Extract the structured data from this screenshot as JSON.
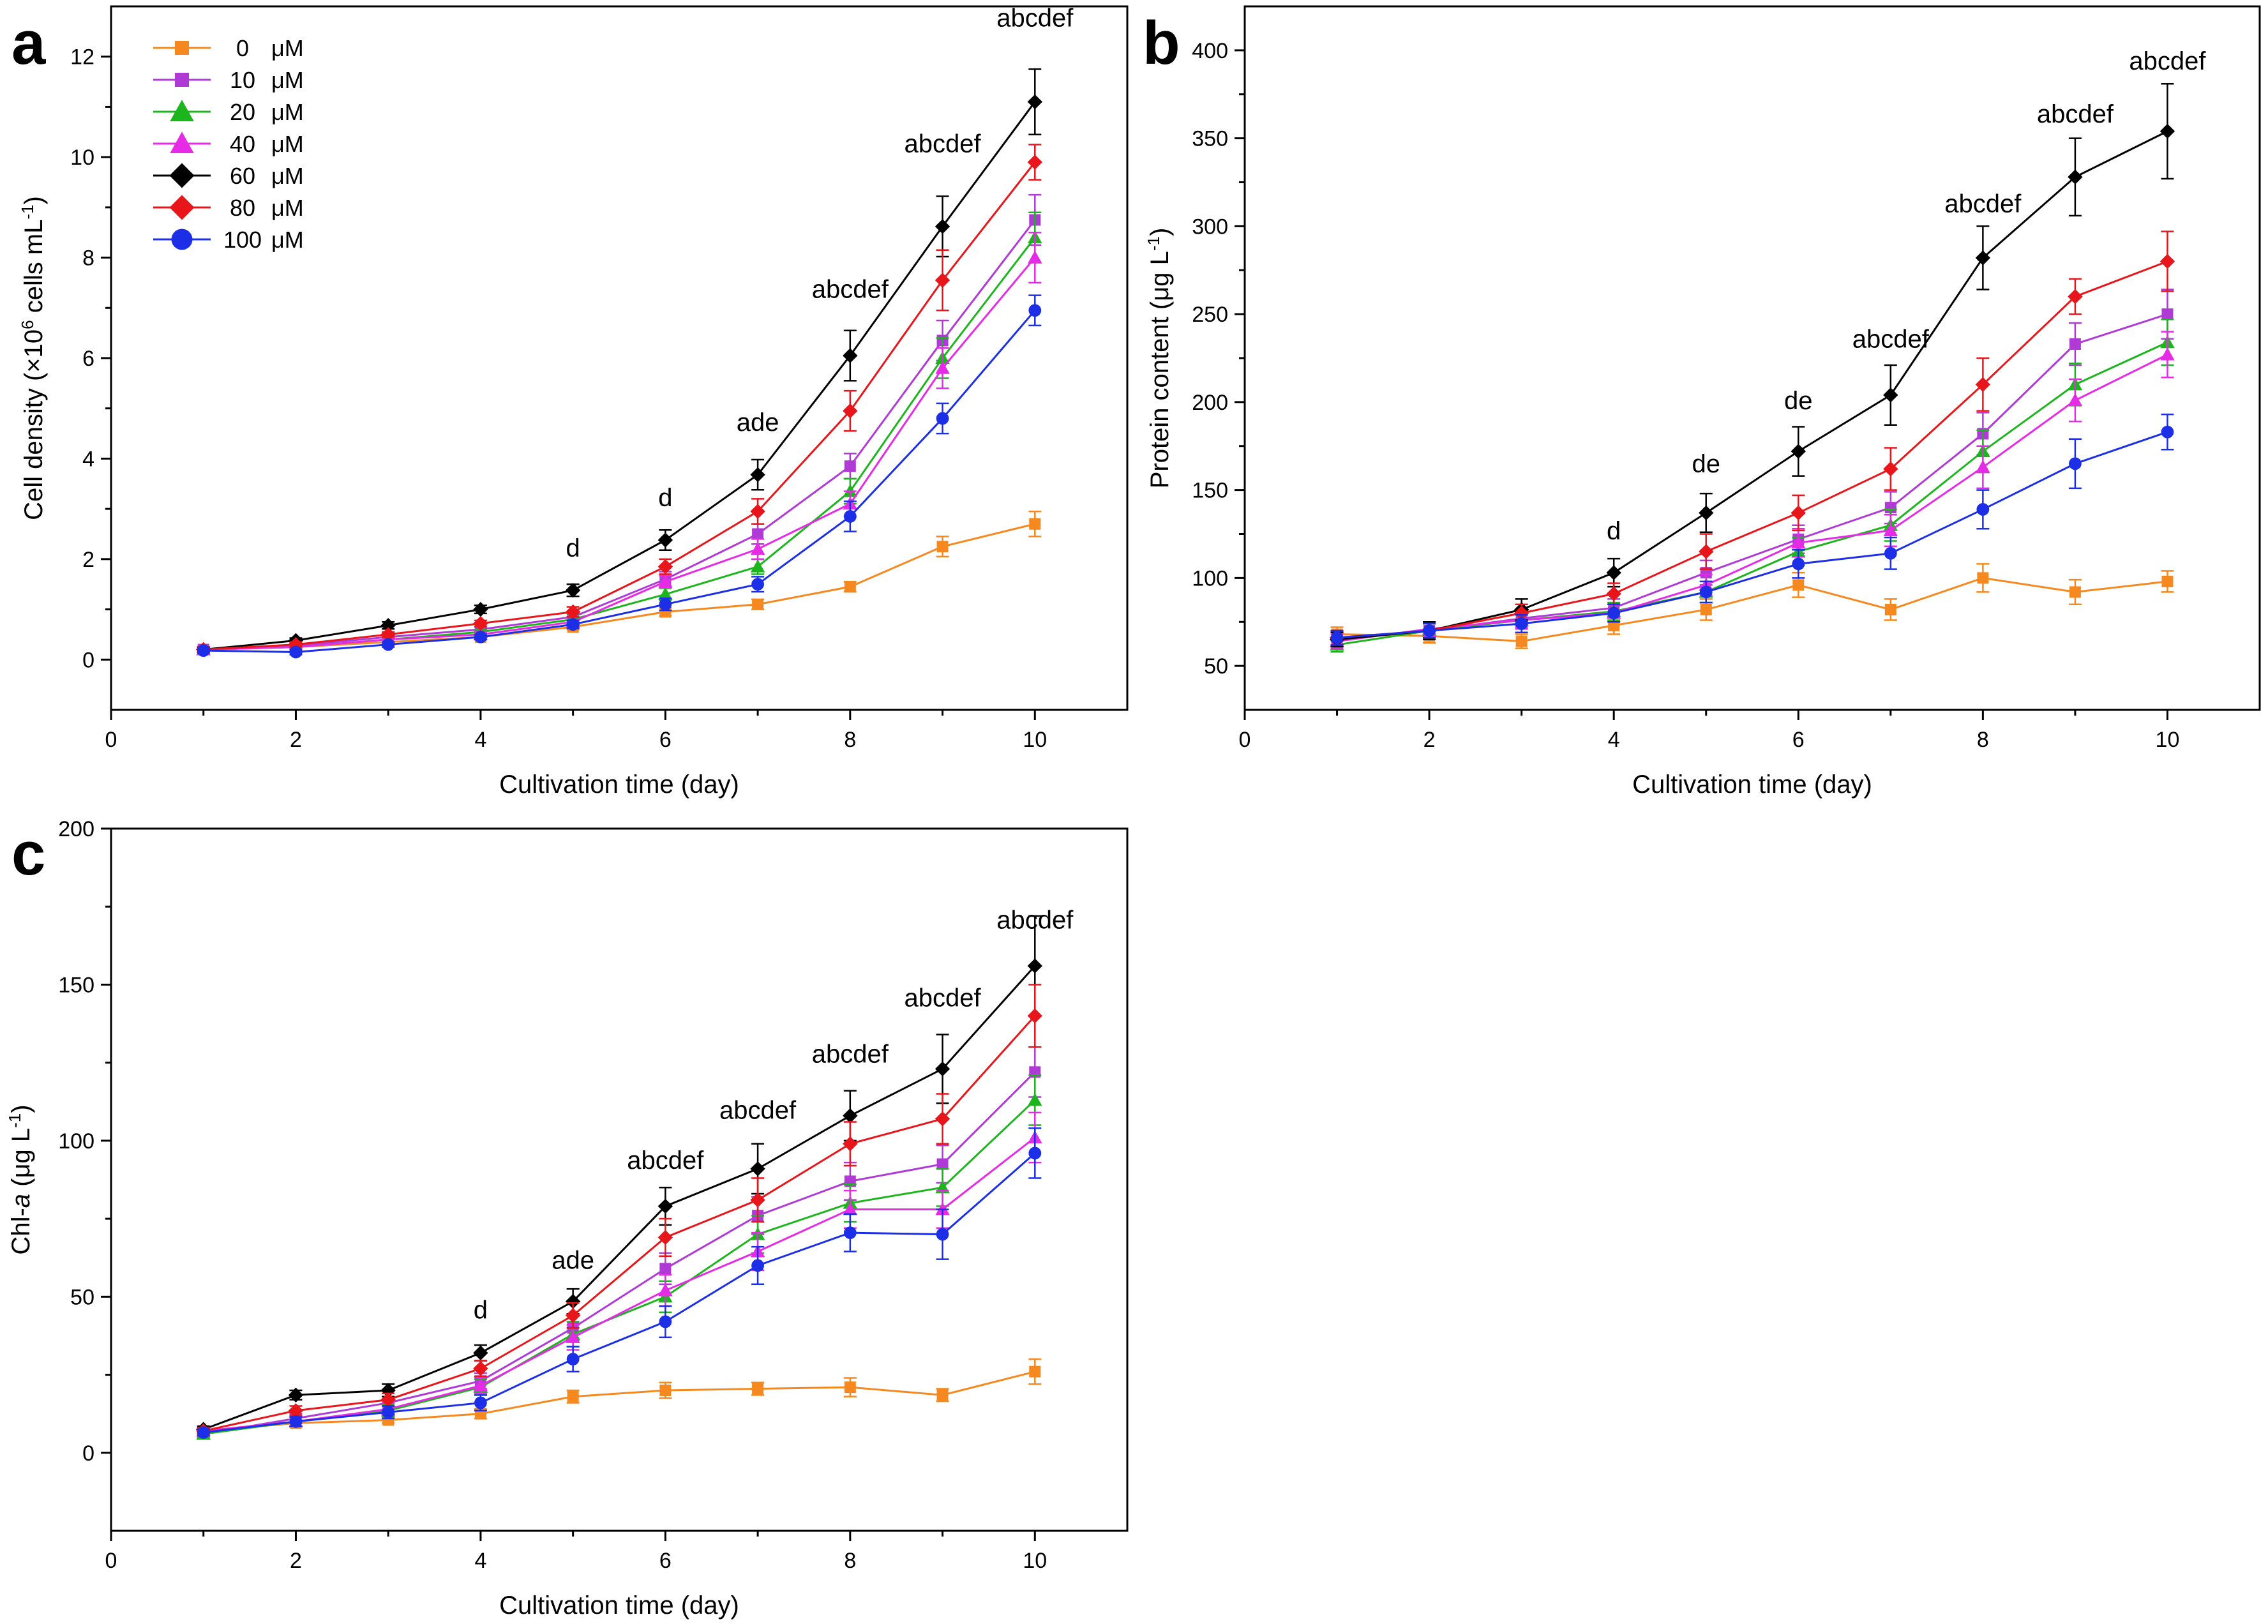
{
  "figure": {
    "legend": {
      "entries": [
        {
          "conc": "0",
          "unit": "μM"
        },
        {
          "conc": "10",
          "unit": "μM"
        },
        {
          "conc": "20",
          "unit": "μM"
        },
        {
          "conc": "40",
          "unit": "μM"
        },
        {
          "conc": "60",
          "unit": "μM"
        },
        {
          "conc": "80",
          "unit": "μM"
        },
        {
          "conc": "100",
          "unit": "μM"
        }
      ]
    }
  },
  "chart_data": [
    {
      "panel": "a",
      "type": "line",
      "title": "",
      "xlabel": "Cultivation time (day)",
      "ylabel_parts": [
        "Cell density (×10",
        "6",
        " cells mL",
        "-1",
        ")"
      ],
      "xlim": [
        0,
        11
      ],
      "ylim": [
        -1,
        13
      ],
      "xticks": [
        0,
        2,
        4,
        6,
        8,
        10
      ],
      "yticks": [
        0,
        2,
        4,
        6,
        8,
        10,
        12
      ],
      "x": [
        1,
        2,
        3,
        4,
        5,
        6,
        7,
        8,
        9,
        10
      ],
      "series": [
        {
          "name": "0 μM",
          "color": "#f5891f",
          "marker": "square",
          "values": [
            0.2,
            0.25,
            0.35,
            0.45,
            0.65,
            0.95,
            1.1,
            1.45,
            2.25,
            2.7
          ],
          "errors": [
            0.05,
            0.05,
            0.05,
            0.05,
            0.05,
            0.08,
            0.1,
            0.1,
            0.2,
            0.25
          ]
        },
        {
          "name": "10 μM",
          "color": "#b03ad6",
          "marker": "square",
          "values": [
            0.2,
            0.28,
            0.45,
            0.6,
            0.85,
            1.6,
            2.5,
            3.85,
            6.35,
            8.75
          ],
          "errors": [
            0.05,
            0.05,
            0.05,
            0.05,
            0.1,
            0.15,
            0.2,
            0.25,
            0.4,
            0.5
          ]
        },
        {
          "name": "20 μM",
          "color": "#1db51d",
          "marker": "triangle",
          "values": [
            0.2,
            0.25,
            0.4,
            0.55,
            0.8,
            1.3,
            1.85,
            3.35,
            6.0,
            8.4
          ],
          "errors": [
            0.05,
            0.05,
            0.05,
            0.05,
            0.1,
            0.12,
            0.15,
            0.25,
            0.4,
            0.5
          ]
        },
        {
          "name": "40 μM",
          "color": "#e62be6",
          "marker": "triangle",
          "values": [
            0.2,
            0.25,
            0.4,
            0.5,
            0.75,
            1.55,
            2.2,
            3.1,
            5.8,
            8.0
          ],
          "errors": [
            0.05,
            0.05,
            0.05,
            0.05,
            0.1,
            0.12,
            0.2,
            0.25,
            0.4,
            0.5
          ]
        },
        {
          "name": "60 μM",
          "color": "#000000",
          "marker": "diamond",
          "values": [
            0.2,
            0.38,
            0.68,
            1.0,
            1.38,
            2.38,
            3.68,
            6.05,
            8.62,
            11.1
          ],
          "errors": [
            0.05,
            0.05,
            0.07,
            0.08,
            0.12,
            0.2,
            0.3,
            0.5,
            0.6,
            0.65
          ]
        },
        {
          "name": "80 μM",
          "color": "#e8151b",
          "marker": "diamond",
          "values": [
            0.2,
            0.3,
            0.5,
            0.72,
            0.95,
            1.85,
            2.95,
            4.95,
            7.55,
            9.9
          ],
          "errors": [
            0.05,
            0.05,
            0.05,
            0.06,
            0.1,
            0.15,
            0.25,
            0.4,
            0.6,
            0.35
          ]
        },
        {
          "name": "100 μM",
          "color": "#1c2fe6",
          "marker": "circle",
          "values": [
            0.18,
            0.15,
            0.3,
            0.45,
            0.7,
            1.1,
            1.5,
            2.85,
            4.8,
            6.95
          ],
          "errors": [
            0.05,
            0.05,
            0.05,
            0.05,
            0.08,
            0.12,
            0.15,
            0.3,
            0.3,
            0.3
          ]
        }
      ],
      "annotations": [
        {
          "x": 5,
          "y": 2.05,
          "text": "d"
        },
        {
          "x": 6,
          "y": 3.05,
          "text": "d"
        },
        {
          "x": 7,
          "y": 4.55,
          "text": "ade"
        },
        {
          "x": 8,
          "y": 7.2,
          "text": "abcdef"
        },
        {
          "x": 9,
          "y": 10.1,
          "text": "abcdef"
        },
        {
          "x": 10,
          "y": 12.6,
          "text": "abcdef"
        }
      ]
    },
    {
      "panel": "b",
      "type": "line",
      "title": "",
      "xlabel": "Cultivation time (day)",
      "ylabel_parts": [
        "Protein content (μg L",
        "-1",
        ")"
      ],
      "xlim": [
        0,
        11
      ],
      "ylim": [
        25,
        425
      ],
      "xticks": [
        0,
        2,
        4,
        6,
        8,
        10
      ],
      "yticks": [
        50,
        100,
        150,
        200,
        250,
        300,
        350,
        400
      ],
      "x": [
        1,
        2,
        3,
        4,
        5,
        6,
        7,
        8,
        9,
        10
      ],
      "series": [
        {
          "name": "0 μM",
          "color": "#f5891f",
          "marker": "square",
          "values": [
            68,
            67,
            64,
            73,
            82,
            96,
            82,
            100,
            92,
            98
          ],
          "errors": [
            4,
            4,
            4,
            5,
            6,
            7,
            6,
            8,
            7,
            6
          ]
        },
        {
          "name": "10 μM",
          "color": "#b03ad6",
          "marker": "square",
          "values": [
            65,
            70,
            77,
            83,
            103,
            122,
            140,
            182,
            233,
            250
          ],
          "errors": [
            4,
            4,
            5,
            5,
            7,
            8,
            9,
            12,
            12,
            14
          ]
        },
        {
          "name": "20 μM",
          "color": "#1db51d",
          "marker": "triangle",
          "values": [
            62,
            70,
            76,
            81,
            92,
            115,
            130,
            172,
            210,
            234
          ],
          "errors": [
            4,
            4,
            5,
            5,
            6,
            8,
            9,
            12,
            12,
            13
          ]
        },
        {
          "name": "40 μM",
          "color": "#e62be6",
          "marker": "triangle",
          "values": [
            64,
            71,
            76,
            80,
            96,
            120,
            127,
            163,
            201,
            227
          ],
          "errors": [
            4,
            4,
            5,
            5,
            6,
            8,
            9,
            12,
            12,
            13
          ]
        },
        {
          "name": "60 μM",
          "color": "#000000",
          "marker": "diamond",
          "values": [
            65,
            70,
            82,
            103,
            137,
            172,
            204,
            282,
            328,
            354
          ],
          "errors": [
            4,
            5,
            6,
            8,
            11,
            14,
            17,
            18,
            22,
            27
          ]
        },
        {
          "name": "80 μM",
          "color": "#e8151b",
          "marker": "diamond",
          "values": [
            66,
            70,
            80,
            91,
            115,
            137,
            162,
            210,
            260,
            280
          ],
          "errors": [
            4,
            4,
            5,
            6,
            10,
            10,
            12,
            15,
            10,
            17
          ]
        },
        {
          "name": "100 μM",
          "color": "#1c2fe6",
          "marker": "circle",
          "values": [
            66,
            70,
            74,
            80,
            92,
            108,
            114,
            139,
            165,
            183
          ],
          "errors": [
            4,
            4,
            5,
            5,
            6,
            8,
            9,
            11,
            14,
            10
          ]
        }
      ],
      "annotations": [
        {
          "x": 4,
          "y": 122,
          "text": "d"
        },
        {
          "x": 5,
          "y": 160,
          "text": "de"
        },
        {
          "x": 6,
          "y": 196,
          "text": "de"
        },
        {
          "x": 7,
          "y": 231,
          "text": "abcdef"
        },
        {
          "x": 8,
          "y": 308,
          "text": "abcdef"
        },
        {
          "x": 9,
          "y": 359,
          "text": "abcdef"
        },
        {
          "x": 10,
          "y": 389,
          "text": "abcdef"
        }
      ]
    },
    {
      "panel": "c",
      "type": "line",
      "title": "",
      "xlabel": "Cultivation time (day)",
      "ylabel_parts": [
        "Chl-",
        "a",
        " (μg L",
        "-1",
        ")"
      ],
      "xlim": [
        0,
        11
      ],
      "ylim": [
        -25,
        200
      ],
      "xticks": [
        0,
        2,
        4,
        6,
        8,
        10
      ],
      "yticks": [
        0,
        50,
        100,
        150,
        200
      ],
      "x": [
        1,
        2,
        3,
        4,
        5,
        6,
        7,
        8,
        9,
        10
      ],
      "series": [
        {
          "name": "0 μM",
          "color": "#f5891f",
          "marker": "square",
          "values": [
            7,
            9.5,
            10.5,
            12.5,
            18,
            20,
            20.5,
            21,
            18.5,
            26
          ],
          "errors": [
            1,
            1,
            1,
            1.5,
            2,
            2.5,
            2,
            3,
            2,
            4
          ]
        },
        {
          "name": "10 μM",
          "color": "#b03ad6",
          "marker": "square",
          "values": [
            6,
            11,
            16,
            23,
            40,
            59,
            76,
            87,
            92.5,
            122
          ],
          "errors": [
            1,
            1.5,
            2,
            2.5,
            4,
            5,
            6,
            6,
            6,
            8
          ]
        },
        {
          "name": "20 μM",
          "color": "#1db51d",
          "marker": "triangle",
          "values": [
            6,
            10,
            13.5,
            21,
            38,
            50,
            70,
            80,
            85,
            113
          ],
          "errors": [
            1,
            1.5,
            2,
            2.5,
            4,
            5,
            6,
            6,
            6,
            8
          ]
        },
        {
          "name": "40 μM",
          "color": "#e62be6",
          "marker": "triangle",
          "values": [
            7,
            10,
            14,
            21.5,
            37,
            52,
            64.5,
            78,
            78,
            101
          ],
          "errors": [
            1,
            1.5,
            2,
            2.5,
            4,
            5,
            6,
            6,
            6,
            8
          ]
        },
        {
          "name": "60 μM",
          "color": "#000000",
          "marker": "diamond",
          "values": [
            7.5,
            18.5,
            20,
            32,
            48.5,
            79,
            91,
            108,
            123,
            156
          ],
          "errors": [
            1,
            1.5,
            2,
            2.5,
            4,
            6,
            8,
            8,
            11,
            16
          ]
        },
        {
          "name": "80 μM",
          "color": "#e8151b",
          "marker": "diamond",
          "values": [
            7,
            13.5,
            17,
            27,
            44,
            69,
            81,
            99,
            107,
            140
          ],
          "errors": [
            1,
            1.5,
            2,
            2.5,
            4,
            6,
            7,
            7,
            8,
            10
          ]
        },
        {
          "name": "100 μM",
          "color": "#1c2fe6",
          "marker": "circle",
          "values": [
            6.5,
            10,
            13,
            16,
            30,
            42,
            60,
            70.5,
            70,
            96
          ],
          "errors": [
            1,
            1.5,
            2,
            2.5,
            4,
            5,
            6,
            6,
            8,
            8
          ]
        }
      ],
      "annotations": [
        {
          "x": 4,
          "y": 43,
          "text": "d"
        },
        {
          "x": 5,
          "y": 59,
          "text": "ade"
        },
        {
          "x": 6,
          "y": 91,
          "text": "abcdef"
        },
        {
          "x": 7,
          "y": 107,
          "text": "abcdef"
        },
        {
          "x": 8,
          "y": 125,
          "text": "abcdef"
        },
        {
          "x": 9,
          "y": 143,
          "text": "abcdef"
        },
        {
          "x": 10,
          "y": 168,
          "text": "abcdef"
        }
      ]
    }
  ]
}
